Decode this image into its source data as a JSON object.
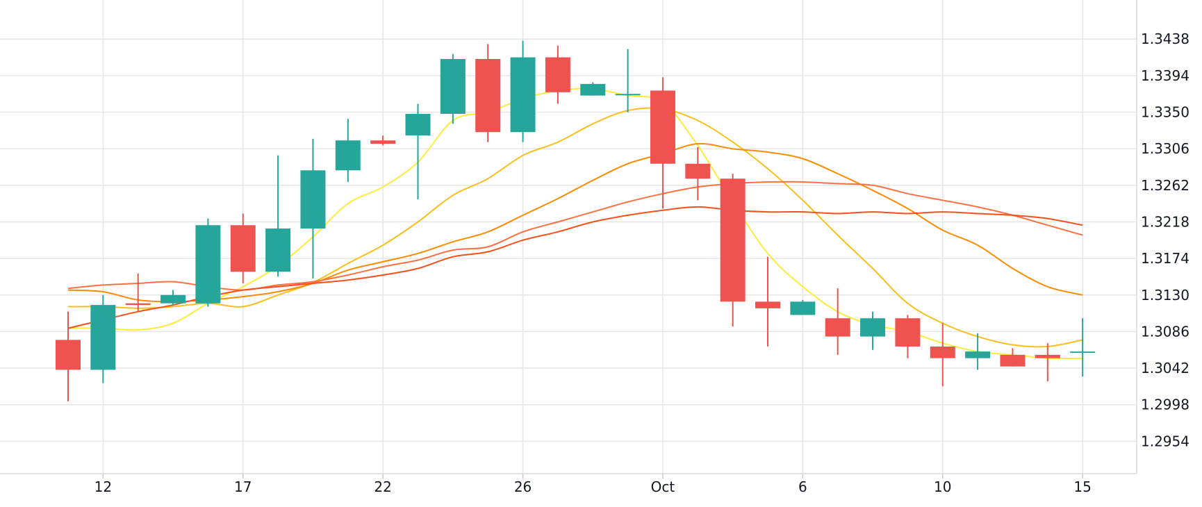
{
  "chart_data": {
    "type": "candlestick",
    "title": "",
    "xlabel": "",
    "ylabel": "",
    "ylim": [
      1.2915,
      1.3485
    ],
    "y_ticks": [
      "1.3438",
      "1.3394",
      "1.3350",
      "1.3306",
      "1.3262",
      "1.3218",
      "1.3174",
      "1.3130",
      "1.3086",
      "1.3042",
      "1.2998",
      "1.2954"
    ],
    "x_ticks": [
      {
        "index": 1,
        "label": "12"
      },
      {
        "index": 5,
        "label": "17"
      },
      {
        "index": 9,
        "label": "22"
      },
      {
        "index": 13,
        "label": "26"
      },
      {
        "index": 17,
        "label": "Oct"
      },
      {
        "index": 21,
        "label": "6"
      },
      {
        "index": 25,
        "label": "10"
      },
      {
        "index": 29,
        "label": "15"
      }
    ],
    "grid": true,
    "colors": {
      "up": "#26a69a",
      "down": "#ef5350",
      "grid": "#e6e6e6",
      "ma_lines": [
        "#ffeb3b",
        "#f9c01c",
        "#fb8c00",
        "#ff5722"
      ]
    },
    "candles": [
      {
        "open": 1.3076,
        "high": 1.311,
        "low": 1.3002,
        "close": 1.304
      },
      {
        "open": 1.304,
        "high": 1.313,
        "low": 1.3024,
        "close": 1.3118
      },
      {
        "open": 1.312,
        "high": 1.3156,
        "low": 1.311,
        "close": 1.3118
      },
      {
        "open": 1.312,
        "high": 1.3136,
        "low": 1.3118,
        "close": 1.313
      },
      {
        "open": 1.312,
        "high": 1.3222,
        "low": 1.3116,
        "close": 1.3214
      },
      {
        "open": 1.3214,
        "high": 1.3228,
        "low": 1.3144,
        "close": 1.3158
      },
      {
        "open": 1.3158,
        "high": 1.3298,
        "low": 1.3152,
        "close": 1.321
      },
      {
        "open": 1.321,
        "high": 1.3318,
        "low": 1.315,
        "close": 1.328
      },
      {
        "open": 1.328,
        "high": 1.3342,
        "low": 1.3266,
        "close": 1.3316
      },
      {
        "open": 1.3316,
        "high": 1.3322,
        "low": 1.331,
        "close": 1.3312
      },
      {
        "open": 1.3322,
        "high": 1.336,
        "low": 1.3245,
        "close": 1.3348
      },
      {
        "open": 1.3348,
        "high": 1.342,
        "low": 1.3336,
        "close": 1.3414
      },
      {
        "open": 1.3414,
        "high": 1.3432,
        "low": 1.3314,
        "close": 1.3326
      },
      {
        "open": 1.3326,
        "high": 1.3436,
        "low": 1.3314,
        "close": 1.3416
      },
      {
        "open": 1.3416,
        "high": 1.343,
        "low": 1.336,
        "close": 1.3374
      },
      {
        "open": 1.337,
        "high": 1.3386,
        "low": 1.337,
        "close": 1.3384
      },
      {
        "open": 1.3372,
        "high": 1.3426,
        "low": 1.335,
        "close": 1.3372
      },
      {
        "open": 1.3376,
        "high": 1.3392,
        "low": 1.3234,
        "close": 1.3288
      },
      {
        "open": 1.3288,
        "high": 1.3308,
        "low": 1.3244,
        "close": 1.327
      },
      {
        "open": 1.327,
        "high": 1.3276,
        "low": 1.3092,
        "close": 1.3122
      },
      {
        "open": 1.3122,
        "high": 1.3176,
        "low": 1.3068,
        "close": 1.3114
      },
      {
        "open": 1.3106,
        "high": 1.3124,
        "low": 1.3106,
        "close": 1.3122
      },
      {
        "open": 1.3102,
        "high": 1.3138,
        "low": 1.3058,
        "close": 1.308
      },
      {
        "open": 1.308,
        "high": 1.311,
        "low": 1.3064,
        "close": 1.3102
      },
      {
        "open": 1.3102,
        "high": 1.3106,
        "low": 1.3054,
        "close": 1.3068
      },
      {
        "open": 1.3068,
        "high": 1.3096,
        "low": 1.302,
        "close": 1.3054
      },
      {
        "open": 1.3054,
        "high": 1.3084,
        "low": 1.304,
        "close": 1.3062
      },
      {
        "open": 1.3058,
        "high": 1.3066,
        "low": 1.3044,
        "close": 1.3044
      },
      {
        "open": 1.3058,
        "high": 1.3072,
        "low": 1.3026,
        "close": 1.3054
      },
      {
        "open": 1.3062,
        "high": 1.3102,
        "low": 1.3032,
        "close": 1.3062
      }
    ],
    "series": [
      {
        "values": [
          1.309,
          1.309,
          1.3088,
          1.3096,
          1.312,
          1.314,
          1.3165,
          1.32,
          1.324,
          1.326,
          1.329,
          1.334,
          1.335,
          1.3366,
          1.3376,
          1.3378,
          1.337,
          1.3362,
          1.331,
          1.3242,
          1.318,
          1.314,
          1.311,
          1.3094,
          1.3086,
          1.3072,
          1.3062,
          1.3058,
          1.3054,
          1.3054
        ]
      },
      {
        "values": [
          1.3116,
          1.3116,
          1.3114,
          1.3116,
          1.312,
          1.3116,
          1.313,
          1.3145,
          1.3168,
          1.319,
          1.3218,
          1.325,
          1.327,
          1.3298,
          1.3314,
          1.3336,
          1.3352,
          1.3354,
          1.334,
          1.3314,
          1.3282,
          1.3244,
          1.3202,
          1.3162,
          1.312,
          1.3096,
          1.308,
          1.307,
          1.3068,
          1.3076
        ]
      },
      {
        "values": [
          1.3136,
          1.3134,
          1.3124,
          1.3122,
          1.3124,
          1.3128,
          1.3134,
          1.3144,
          1.316,
          1.317,
          1.318,
          1.3194,
          1.3206,
          1.3226,
          1.3246,
          1.3268,
          1.3288,
          1.33,
          1.3312,
          1.3306,
          1.3302,
          1.3294,
          1.3276,
          1.3256,
          1.3234,
          1.3208,
          1.319,
          1.3162,
          1.314,
          1.313
        ]
      },
      {
        "values": [
          1.3138,
          1.3142,
          1.3144,
          1.3146,
          1.314,
          1.3136,
          1.3142,
          1.3146,
          1.3154,
          1.3164,
          1.3172,
          1.3184,
          1.3188,
          1.3206,
          1.3218,
          1.323,
          1.3242,
          1.3252,
          1.326,
          1.3264,
          1.3266,
          1.3266,
          1.3264,
          1.3262,
          1.3252,
          1.3244,
          1.3236,
          1.3226,
          1.3214,
          1.3202
        ]
      },
      {
        "values": [
          1.309,
          1.31,
          1.311,
          1.3118,
          1.3128,
          1.3136,
          1.314,
          1.3144,
          1.3148,
          1.3154,
          1.3162,
          1.3176,
          1.3182,
          1.3196,
          1.3206,
          1.3218,
          1.3226,
          1.3232,
          1.3236,
          1.3232,
          1.323,
          1.323,
          1.3228,
          1.323,
          1.3228,
          1.323,
          1.3228,
          1.3226,
          1.3222,
          1.3214
        ]
      }
    ]
  }
}
